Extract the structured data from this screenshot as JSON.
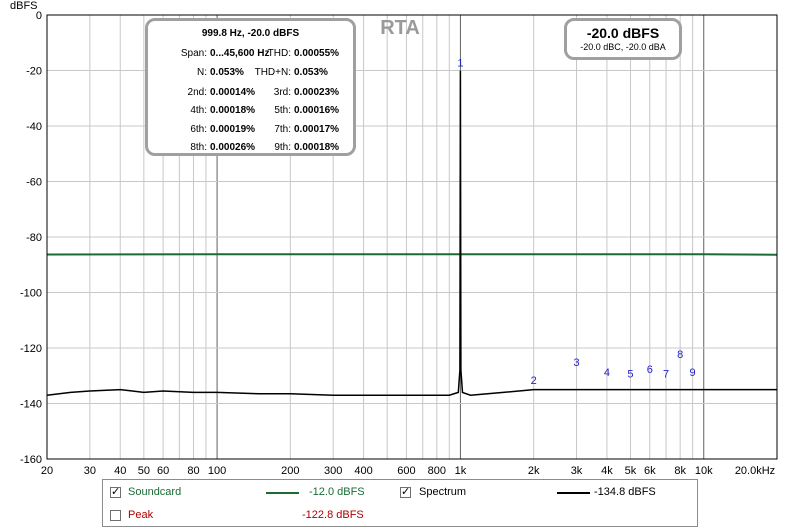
{
  "chart_data": {
    "type": "line",
    "title": "RTA",
    "ylabel": "dBFS",
    "xlim": [
      20,
      20000
    ],
    "ylim": [
      -160,
      0
    ],
    "x_scale": "log",
    "grid": true,
    "y_ticks": [
      0,
      -20,
      -40,
      -60,
      -80,
      -100,
      -120,
      -140,
      -160
    ],
    "y_tick_labels": [
      "0",
      "-20",
      "-40",
      "-60",
      "-80",
      "-100",
      "-120",
      "-140",
      "-160"
    ],
    "x_ticks": [
      20,
      30,
      40,
      50,
      60,
      80,
      100,
      200,
      300,
      400,
      600,
      800,
      1000,
      2000,
      3000,
      4000,
      5000,
      6000,
      8000,
      10000,
      20000
    ],
    "x_tick_labels": [
      "20",
      "30",
      "40",
      "50",
      "60",
      "80",
      "100",
      "200",
      "300",
      "400",
      "600",
      "800",
      "1k",
      "2k",
      "3k",
      "4k",
      "5k",
      "6k",
      "8k",
      "10k",
      "20.0kHz"
    ],
    "series": [
      {
        "name": "Soundcard",
        "color": "#1a6b34",
        "x": [
          20,
          100,
          1000,
          10000,
          20000
        ],
        "y": [
          -86.3,
          -86.2,
          -86.2,
          -86.2,
          -86.4
        ]
      },
      {
        "name": "Spectrum",
        "color": "#000000",
        "x": [
          20,
          25,
          30,
          40,
          50,
          60,
          80,
          100,
          150,
          200,
          300,
          400,
          500,
          600,
          800,
          900,
          980,
          995,
          999.8,
          1005,
          1020,
          1100,
          1500,
          2000,
          3000,
          4000,
          5000,
          6000,
          8000,
          10000,
          15000,
          18000,
          20000
        ],
        "y": [
          -137,
          -136,
          -135.5,
          -135,
          -136,
          -135.5,
          -136,
          -136,
          -136.5,
          -136.5,
          -137,
          -137,
          -137,
          -137,
          -137,
          -137,
          -136,
          -128,
          -20,
          -128,
          -136,
          -137,
          -136,
          -135,
          -135,
          -135,
          -135,
          -135,
          -135,
          -135,
          -135,
          -135,
          -135
        ]
      }
    ],
    "harmonics": [
      {
        "label": "1",
        "x": 1000,
        "y": -20
      },
      {
        "label": "2",
        "x": 2000,
        "y": -134.5
      },
      {
        "label": "3",
        "x": 3000,
        "y": -128
      },
      {
        "label": "4",
        "x": 4000,
        "y": -131.5
      },
      {
        "label": "5",
        "x": 5000,
        "y": -132
      },
      {
        "label": "6",
        "x": 6000,
        "y": -130.5
      },
      {
        "label": "7",
        "x": 7000,
        "y": -132
      },
      {
        "label": "8",
        "x": 8000,
        "y": -125
      },
      {
        "label": "9",
        "x": 9000,
        "y": -131.5
      }
    ]
  },
  "info": {
    "title": "999.8 Hz, -20.0 dBFS",
    "span_label": "Span:",
    "span_value": "0...45,600 Hz",
    "thd_label": "THD:",
    "thd_value": "0.00055%",
    "n_label": "N:",
    "n_value": "0.053%",
    "thdn_label": "THD+N:",
    "thdn_value": "0.053%",
    "h2_label": "2nd:",
    "h2_value": "0.00014%",
    "h3_label": "3rd:",
    "h3_value": "0.00023%",
    "h4_label": "4th:",
    "h4_value": "0.00018%",
    "h5_label": "5th:",
    "h5_value": "0.00016%",
    "h6_label": "6th:",
    "h6_value": "0.00019%",
    "h7_label": "7th:",
    "h7_value": "0.00017%",
    "h8_label": "8th:",
    "h8_value": "0.00026%",
    "h9_label": "9th:",
    "h9_value": "0.00018%"
  },
  "level": {
    "main": "-20.0 dBFS",
    "sub": "-20.0 dBC, -20.0 dBA"
  },
  "legend": {
    "soundcard_label": "Soundcard",
    "soundcard_checked": true,
    "soundcard_color": "#1a6b34",
    "soundcard_value": "-12.0 dBFS",
    "peak_label": "Peak",
    "peak_checked": false,
    "peak_color": "#b00000",
    "peak_value": "-122.8 dBFS",
    "spectrum_label": "Spectrum",
    "spectrum_checked": true,
    "spectrum_value": "-134.8 dBFS"
  }
}
